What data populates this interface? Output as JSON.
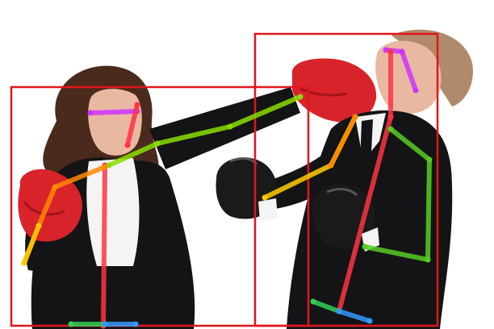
{
  "colors": {
    "background": "#ffffff",
    "bbox": "#e0161b",
    "suit": "#141416",
    "shirt": "#f4f4f4",
    "glove_red": "#d8232a",
    "glove_black": "#1a1a1a",
    "skin": "#e9b8a0",
    "hair_woman": "#4a2a1c",
    "hair_man": "#b08a6a"
  },
  "detections": [
    {
      "label": "",
      "kind": "person-woman"
    },
    {
      "label": "",
      "kind": "person-man"
    }
  ],
  "skeleton_colors": {
    "head": "#cc33ff",
    "torso": "#ff3344",
    "right_arm": "#88dd00",
    "right_arm_upper": "#55cc22",
    "left_arm": "#ff8800",
    "left_arm_lower": "#ffcc00",
    "right_leg": "#33cc55",
    "left_leg": "#3399ff"
  },
  "icons": [
    "red-boxing-glove-icon",
    "black-boxing-glove-icon"
  ]
}
